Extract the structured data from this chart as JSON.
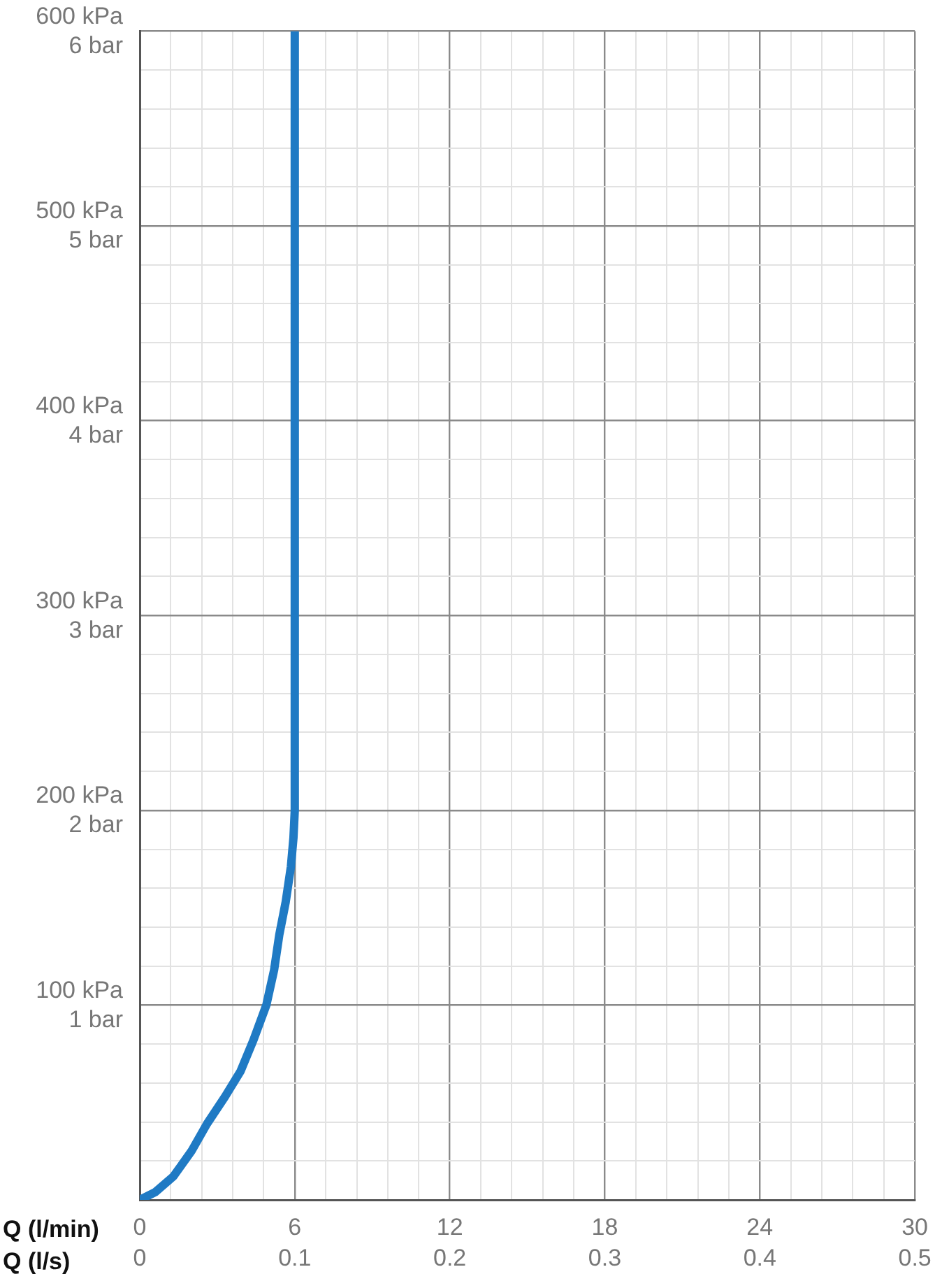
{
  "chart_data": {
    "type": "line",
    "xlabel": "Q (l/min)",
    "x2label": "Q (l/s)",
    "xlim": [
      0,
      30
    ],
    "x2lim": [
      0,
      0.5
    ],
    "xticks": [
      0,
      {
        "value": 1.2,
        "label": null
      },
      {
        "value": 2.4,
        "label": null
      },
      {
        "value": 3.6,
        "label": null
      },
      {
        "value": 4.8,
        "label": null
      },
      6,
      {
        "value": 7.2,
        "label": null
      },
      {
        "value": 8.4,
        "label": null
      },
      {
        "value": 9.6,
        "label": null
      },
      {
        "value": 10.8,
        "label": null
      },
      12,
      {
        "value": 13.2,
        "label": null
      },
      {
        "value": 14.4,
        "label": null
      },
      {
        "value": 15.6,
        "label": null
      },
      {
        "value": 16.8,
        "label": null
      },
      18,
      {
        "value": 19.2,
        "label": null
      },
      {
        "value": 20.4,
        "label": null
      },
      {
        "value": 21.6,
        "label": null
      },
      {
        "value": 22.8,
        "label": null
      },
      24,
      {
        "value": 25.2,
        "label": null
      },
      {
        "value": 26.4,
        "label": null
      },
      {
        "value": 27.6,
        "label": null
      },
      {
        "value": 28.8,
        "label": null
      },
      30
    ],
    "x2ticks": [
      0,
      0.1,
      0.2,
      0.3,
      0.4,
      0.5
    ],
    "ylim": [
      0,
      600
    ],
    "yticks": [
      {
        "value": 0,
        "label": null
      },
      {
        "value": 20,
        "label": null
      },
      {
        "value": 40,
        "label": null
      },
      {
        "value": 60,
        "label": null
      },
      {
        "value": 80,
        "label": null
      },
      {
        "value": 100,
        "label": "100 kPa"
      },
      {
        "value": 120,
        "label": null
      },
      {
        "value": 140,
        "label": null
      },
      {
        "value": 160,
        "label": null
      },
      {
        "value": 180,
        "label": null
      },
      {
        "value": 200,
        "label": "200 kPa"
      },
      {
        "value": 220,
        "label": null
      },
      {
        "value": 240,
        "label": null
      },
      {
        "value": 260,
        "label": null
      },
      {
        "value": 280,
        "label": null
      },
      {
        "value": 300,
        "label": "300 kPa"
      },
      {
        "value": 320,
        "label": null
      },
      {
        "value": 340,
        "label": null
      },
      {
        "value": 360,
        "label": null
      },
      {
        "value": 380,
        "label": null
      },
      {
        "value": 400,
        "label": "400 kPa"
      },
      {
        "value": 420,
        "label": null
      },
      {
        "value": 440,
        "label": null
      },
      {
        "value": 460,
        "label": null
      },
      {
        "value": 480,
        "label": null
      },
      {
        "value": 500,
        "label": "500 kPa"
      },
      {
        "value": 520,
        "label": null
      },
      {
        "value": 540,
        "label": null
      },
      {
        "value": 560,
        "label": null
      },
      {
        "value": 580,
        "label": null
      },
      {
        "value": 600,
        "label": "600 kPa"
      }
    ],
    "y2lim": [
      0,
      6
    ],
    "y2ticks": [
      {
        "value": 1,
        "label": "1 bar"
      },
      {
        "value": 2,
        "label": "2 bar"
      },
      {
        "value": 3,
        "label": "3 bar"
      },
      {
        "value": 4,
        "label": "4 bar"
      },
      {
        "value": 5,
        "label": "5 bar"
      },
      {
        "value": 6,
        "label": "6 bar"
      }
    ],
    "grid": true,
    "legend": false,
    "marker": "none",
    "line_style": "solid",
    "x": [
      0,
      0.6,
      1.3,
      2,
      2.6,
      3.3,
      3.9,
      4.4,
      4.9,
      5.2,
      5.4,
      5.65,
      5.85,
      5.95,
      6,
      6
    ],
    "series": [
      {
        "color": "#1f7ac4",
        "values": [
          0,
          4,
          12,
          25,
          39,
          53,
          66,
          82,
          100,
          118,
          136,
          153,
          171,
          186,
          200,
          600
        ]
      }
    ]
  }
}
